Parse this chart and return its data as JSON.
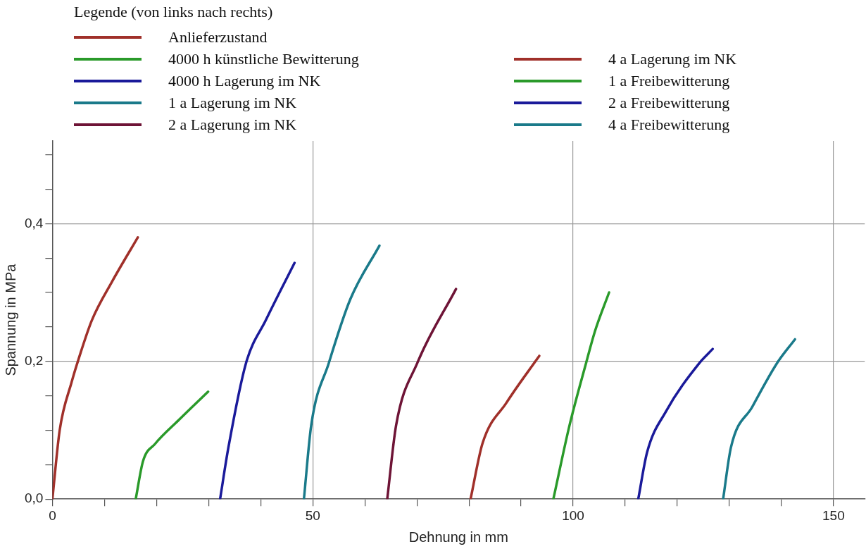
{
  "chart_data": {
    "type": "line",
    "xlabel": "Dehnung in mm",
    "ylabel": "Spannung in MPa",
    "legend_title": "Legende (von links nach rechts)",
    "legend": "top left",
    "grid": true,
    "line_style": "solid",
    "xlim": [
      0,
      156
    ],
    "ylim": [
      0,
      0.52
    ],
    "xticks": [
      0,
      {
        "value": 10,
        "label": null
      },
      {
        "value": 20,
        "label": null
      },
      {
        "value": 30,
        "label": null
      },
      {
        "value": 40,
        "label": null
      },
      50,
      {
        "value": 60,
        "label": null
      },
      {
        "value": 70,
        "label": null
      },
      {
        "value": 80,
        "label": null
      },
      {
        "value": 90,
        "label": null
      },
      100,
      {
        "value": 110,
        "label": null
      },
      {
        "value": 120,
        "label": null
      },
      {
        "value": 130,
        "label": null
      },
      {
        "value": 140,
        "label": null
      },
      150
    ],
    "yticks": [
      {
        "value": 0,
        "label": "0,0"
      },
      {
        "value": 0.05,
        "label": null
      },
      {
        "value": 0.1,
        "label": null
      },
      {
        "value": 0.15,
        "label": null
      },
      {
        "value": 0.2,
        "label": "0,2"
      },
      {
        "value": 0.25,
        "label": null
      },
      {
        "value": 0.3,
        "label": null
      },
      {
        "value": 0.35,
        "label": null
      },
      {
        "value": 0.4,
        "label": "0,4"
      },
      {
        "value": 0.45,
        "label": null
      },
      {
        "value": 0.5,
        "label": null
      }
    ],
    "series": [
      {
        "name": "Anlieferzustand",
        "color": "#a0302a",
        "x": [
          0,
          1.4,
          3.7,
          5.1,
          7.6,
          11.4,
          16.4
        ],
        "values": [
          0,
          0.1,
          0.17,
          0.205,
          0.26,
          0.315,
          0.38
        ]
      },
      {
        "name": "4000 h künstliche Bewitterung",
        "color": "#2a9a2a",
        "x": [
          16.0,
          17.4,
          19.7,
          24.3,
          29.9
        ],
        "values": [
          0,
          0.055,
          0.08,
          0.115,
          0.156
        ]
      },
      {
        "name": "4000 h Lagerung im NK",
        "color": "#1a1a9a",
        "x": [
          32.2,
          33.8,
          37.2,
          41.0,
          46.5
        ],
        "values": [
          0,
          0.075,
          0.198,
          0.26,
          0.343
        ]
      },
      {
        "name": "1 a Lagerung im NK",
        "color": "#1a7a8a",
        "x": [
          48.3,
          49.7,
          53.1,
          57.2,
          62.8
        ],
        "values": [
          0,
          0.107,
          0.198,
          0.29,
          0.368
        ]
      },
      {
        "name": "2 a Lagerung im NK",
        "color": "#6e1436",
        "x": [
          64.3,
          66.0,
          70.1,
          77.5
        ],
        "values": [
          0,
          0.107,
          0.198,
          0.305
        ]
      },
      {
        "name": "4 a Lagerung im NK",
        "color": "#a0302a",
        "x": [
          80.3,
          82.6,
          87.2,
          93.5
        ],
        "values": [
          0,
          0.081,
          0.14,
          0.208
        ]
      },
      {
        "name": "1 a Freibewitterung",
        "color": "#2a9a2a",
        "x": [
          96.2,
          99.3,
          102.5,
          104.2,
          106.9
        ],
        "values": [
          0,
          0.107,
          0.198,
          0.244,
          0.3
        ]
      },
      {
        "name": "2 a Freibewitterung",
        "color": "#1a1a9a",
        "x": [
          112.5,
          114.2,
          117.8,
          124.3,
          126.8
        ],
        "values": [
          0,
          0.068,
          0.127,
          0.198,
          0.218
        ]
      },
      {
        "name": "4 a Freibewitterung",
        "color": "#1a7a8a",
        "x": [
          128.8,
          130.3,
          134.4,
          139.2,
          142.6
        ],
        "values": [
          0,
          0.075,
          0.134,
          0.198,
          0.232
        ]
      }
    ]
  }
}
